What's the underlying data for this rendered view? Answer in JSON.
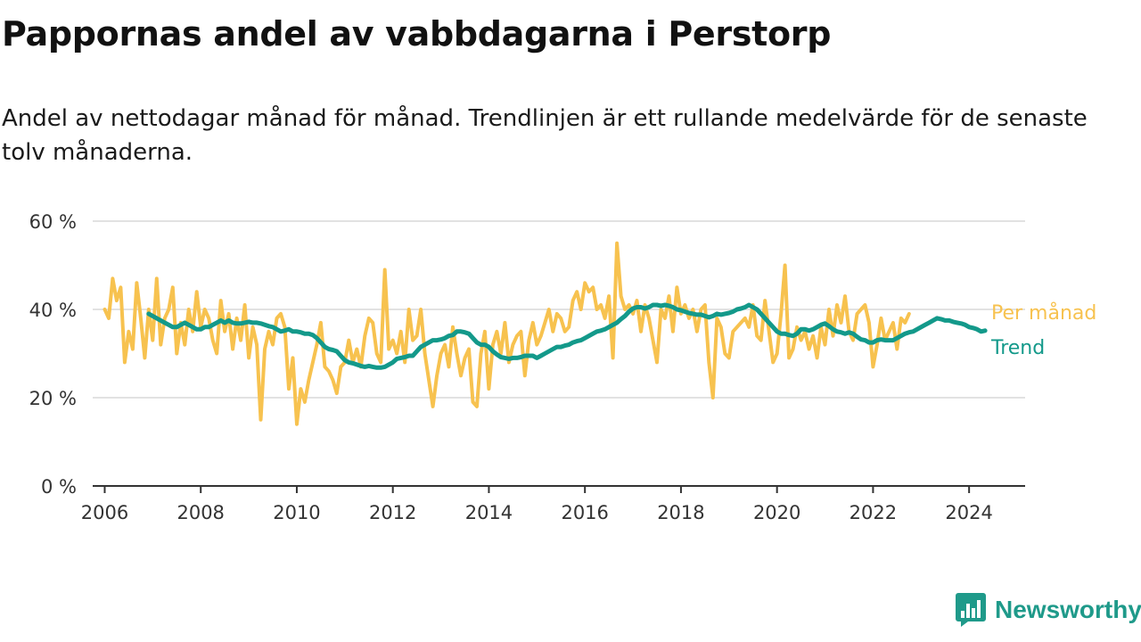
{
  "title": "Pappornas andel av vabbdagarna i Perstorp",
  "subtitle": "Andel av nettodagar månad för månad. Trendlinjen är ett rullande medelvärde för de senaste tolv månaderna.",
  "brand": {
    "name": "Newsworthy",
    "icon": "newsworthy-logo-icon",
    "color": "#1f9a8a"
  },
  "chart_data": {
    "type": "line",
    "x_axis": {
      "type": "date",
      "range": [
        "2005-10",
        "2025-03"
      ],
      "ticks": [
        "2006",
        "2008",
        "2010",
        "2012",
        "2014",
        "2016",
        "2018",
        "2020",
        "2022",
        "2024"
      ]
    },
    "y_axis": {
      "ylim": [
        0,
        60
      ],
      "ticks": [
        0,
        20,
        40,
        60
      ],
      "tick_labels": [
        "0 %",
        "20 %",
        "40 %",
        "60 %"
      ],
      "grid": true
    },
    "legend": "direct labels at line ends (right)",
    "series": [
      {
        "name": "Per månad",
        "color": "#f7c24f",
        "x_start": "2006-01",
        "frequency": "monthly",
        "values": [
          40,
          38,
          47,
          42,
          45,
          28,
          35,
          31,
          46,
          38,
          29,
          40,
          33,
          47,
          32,
          38,
          40,
          45,
          30,
          37,
          32,
          40,
          35,
          44,
          36,
          40,
          38,
          33,
          30,
          42,
          35,
          39,
          31,
          38,
          33,
          41,
          29,
          36,
          32,
          15,
          31,
          35,
          32,
          38,
          39,
          36,
          22,
          29,
          14,
          22,
          19,
          24,
          28,
          32,
          37,
          27,
          26,
          24,
          21,
          27,
          28,
          33,
          28,
          31,
          27,
          34,
          38,
          37,
          30,
          28,
          49,
          31,
          33,
          30,
          35,
          28,
          40,
          33,
          34,
          40,
          30,
          24,
          18,
          25,
          30,
          32,
          27,
          36,
          30,
          25,
          29,
          31,
          19,
          18,
          30,
          35,
          22,
          32,
          35,
          30,
          37,
          28,
          32,
          34,
          35,
          25,
          33,
          37,
          32,
          34,
          37,
          40,
          35,
          39,
          38,
          35,
          36,
          42,
          44,
          40,
          46,
          44,
          45,
          40,
          41,
          38,
          43,
          29,
          55,
          43,
          40,
          41,
          39,
          42,
          35,
          41,
          38,
          33,
          28,
          40,
          38,
          43,
          35,
          45,
          39,
          41,
          38,
          40,
          35,
          40,
          41,
          28,
          20,
          38,
          36,
          30,
          29,
          35,
          36,
          37,
          38,
          36,
          41,
          34,
          33,
          42,
          35,
          28,
          30,
          39,
          50,
          29,
          31,
          36,
          33,
          35,
          31,
          34,
          29,
          36,
          32,
          40,
          34,
          41,
          37,
          43,
          35,
          33,
          39,
          40,
          41,
          37,
          27,
          32,
          38,
          33,
          35,
          37,
          31,
          38,
          37,
          39
        ]
      },
      {
        "name": "Trend",
        "color": "#13998a",
        "x_start": "2006-12",
        "frequency": "monthly",
        "values": [
          39,
          38.5,
          38,
          37.5,
          37,
          36.5,
          36,
          36,
          36.5,
          37,
          36.5,
          36,
          35.5,
          35.5,
          36,
          36,
          36.5,
          37,
          37.5,
          37,
          37.5,
          37,
          36.8,
          36.8,
          37,
          37.2,
          37,
          37,
          36.8,
          36.5,
          36.2,
          36,
          35.5,
          35,
          35.2,
          35.5,
          35,
          35,
          34.8,
          34.5,
          34.5,
          34.2,
          33.5,
          32.5,
          31.5,
          31,
          30.8,
          30.5,
          29.5,
          28.5,
          28,
          27.8,
          27.5,
          27.2,
          27,
          27.2,
          27,
          26.8,
          26.8,
          27,
          27.5,
          28,
          28.8,
          29,
          29.2,
          29.5,
          29.5,
          30.5,
          31.5,
          32,
          32.5,
          33,
          33,
          33.2,
          33.5,
          34,
          34.2,
          35,
          35,
          34.8,
          34.5,
          33.5,
          32.5,
          32,
          32,
          31.5,
          30.5,
          29.8,
          29.2,
          29,
          28.8,
          29,
          29,
          29.2,
          29.5,
          29.5,
          29.5,
          29,
          29.5,
          30,
          30.5,
          31,
          31.5,
          31.5,
          31.8,
          32,
          32.5,
          32.8,
          33,
          33.5,
          34,
          34.5,
          35,
          35.2,
          35.5,
          36,
          36.5,
          37,
          37.8,
          38.5,
          39.5,
          40.2,
          40.5,
          40.5,
          40.2,
          40.5,
          41,
          41,
          40.8,
          41,
          40.8,
          40.5,
          40,
          39.8,
          39.5,
          39.2,
          39,
          38.8,
          38.8,
          38.5,
          38.2,
          38.5,
          39,
          38.8,
          39,
          39.2,
          39.5,
          40,
          40.2,
          40.5,
          41,
          40.5,
          40,
          39,
          38,
          37,
          36,
          35,
          34.5,
          34.5,
          34.2,
          34,
          34.5,
          35.5,
          35.5,
          35.2,
          35.5,
          36,
          36.5,
          36.8,
          36.2,
          35.5,
          35,
          34.8,
          34.5,
          34.8,
          34.5,
          33.8,
          33.2,
          33,
          32.5,
          32.5,
          33,
          33.2,
          33,
          33,
          33,
          33.5,
          34,
          34.5,
          34.8,
          35,
          35.5,
          36,
          36.5,
          37,
          37.5,
          38,
          37.8,
          37.5,
          37.5,
          37.2,
          37,
          36.8,
          36.5,
          36,
          35.8,
          35.5,
          35,
          35.2
        ]
      }
    ]
  }
}
